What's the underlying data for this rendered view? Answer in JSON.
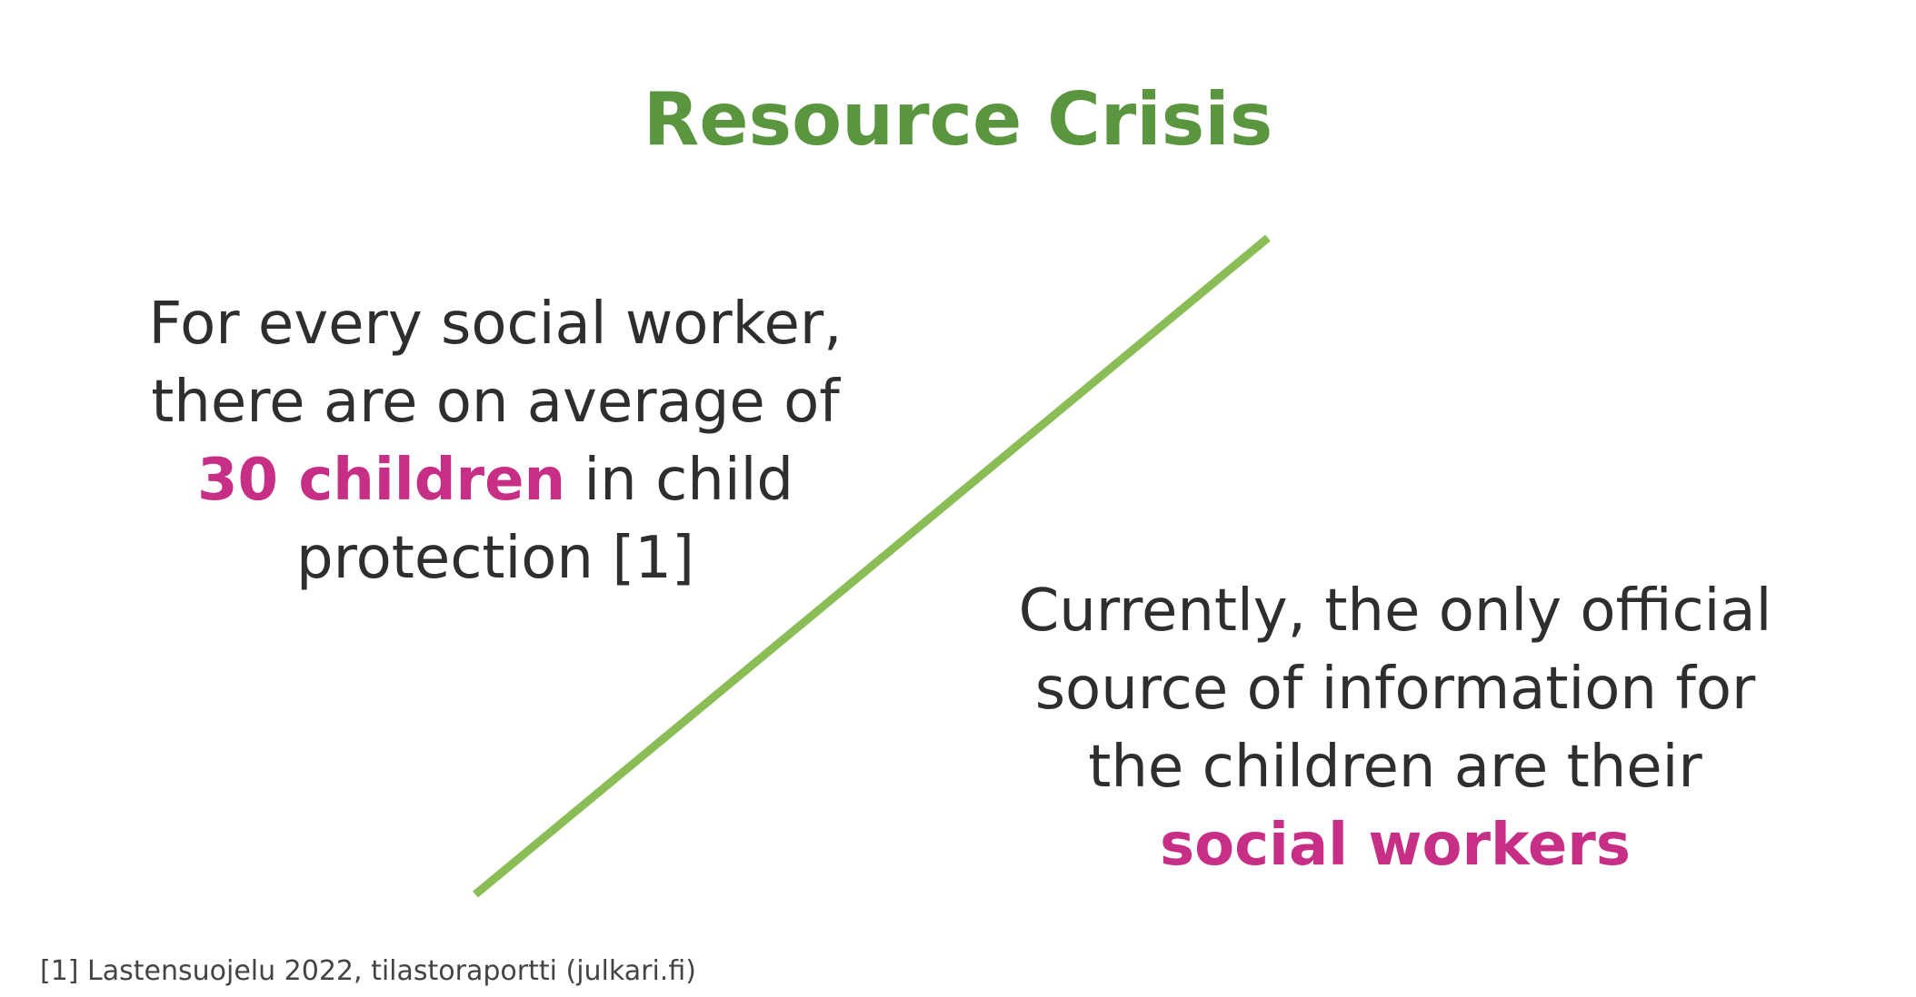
{
  "title": "Resource Crisis",
  "left_block": {
    "line1": "For every social worker,",
    "line2": "there are on average of",
    "highlight": "30 children",
    "line3_rest": " in child",
    "line4": "protection [1]"
  },
  "right_block": {
    "line1": "Currently, the only official",
    "line2": "source of information for",
    "line3": "the children are their",
    "highlight": "social workers"
  },
  "footnote": "[1] Lastensuojelu 2022, tilastoraportti (julkari.fi)",
  "colors": {
    "title": "#5a963f",
    "divider": "#8bbd57",
    "highlight": "#c72e86",
    "body_text": "#2e2e2e"
  }
}
